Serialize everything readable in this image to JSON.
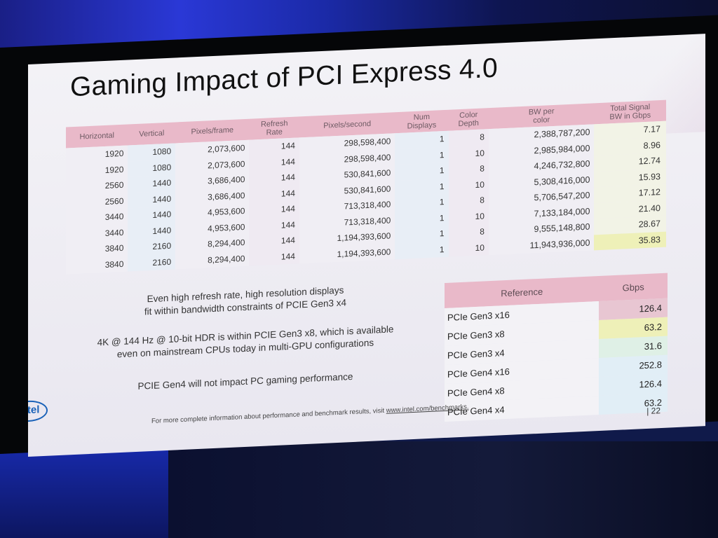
{
  "slide": {
    "title": "Gaming Impact of PCI Express 4.0",
    "page_number": "| 22",
    "logo_text": "intel",
    "footnote_prefix": "For more complete information about performance and benchmark results, visit ",
    "footnote_link": "www.intel.com/benchmarks.",
    "notes": [
      [
        "Even high refresh rate, high resolution displays",
        "fit within bandwidth constraints of PCIE Gen3 x4"
      ],
      [
        "4K @ 144 Hz @ 10-bit HDR is within PCIE Gen3 x8, which is available",
        "even on mainstream CPUs today in multi-GPU configurations"
      ],
      [
        "PCIE Gen4 will not impact PC gaming performance"
      ]
    ]
  },
  "main_table": {
    "headers": [
      [
        "Horizontal"
      ],
      [
        "Vertical"
      ],
      [
        "Pixels/frame"
      ],
      [
        "Refresh",
        "Rate"
      ],
      [
        "Pixels/second"
      ],
      [
        "Num",
        "Displays"
      ],
      [
        "Color",
        "Depth"
      ],
      [
        "BW per",
        "color"
      ],
      [
        "Total Signal",
        "BW in Gbps"
      ]
    ],
    "rows": [
      [
        "1920",
        "1080",
        "2,073,600",
        "144",
        "298,598,400",
        "1",
        "8",
        "2,388,787,200",
        "7.17"
      ],
      [
        "1920",
        "1080",
        "2,073,600",
        "144",
        "298,598,400",
        "1",
        "10",
        "2,985,984,000",
        "8.96"
      ],
      [
        "2560",
        "1440",
        "3,686,400",
        "144",
        "530,841,600",
        "1",
        "8",
        "4,246,732,800",
        "12.74"
      ],
      [
        "2560",
        "1440",
        "3,686,400",
        "144",
        "530,841,600",
        "1",
        "10",
        "5,308,416,000",
        "15.93"
      ],
      [
        "3440",
        "1440",
        "4,953,600",
        "144",
        "713,318,400",
        "1",
        "8",
        "5,706,547,200",
        "17.12"
      ],
      [
        "3440",
        "1440",
        "4,953,600",
        "144",
        "713,318,400",
        "1",
        "10",
        "7,133,184,000",
        "21.40"
      ],
      [
        "3840",
        "2160",
        "8,294,400",
        "144",
        "1,194,393,600",
        "1",
        "8",
        "9,555,148,800",
        "28.67"
      ],
      [
        "3840",
        "2160",
        "8,294,400",
        "144",
        "1,194,393,600",
        "1",
        "10",
        "11,943,936,000",
        "35.83"
      ]
    ],
    "highlight_color": "#eef0b8"
  },
  "reference_table": {
    "headers": [
      "Reference",
      "Gbps"
    ],
    "rows": [
      {
        "name": "PCIe Gen3 x16",
        "value": "126.4",
        "color": "#e8c6d2"
      },
      {
        "name": "PCIe Gen3 x8",
        "value": "63.2",
        "color": "#eef0b8"
      },
      {
        "name": "PCIe Gen3 x4",
        "value": "31.6",
        "color": "#dff0e6"
      },
      {
        "name": "PCIe Gen4 x16",
        "value": "252.8",
        "color": "#e1eef6"
      },
      {
        "name": "PCIe Gen4 x8",
        "value": "126.4",
        "color": "#e1eef6"
      },
      {
        "name": "PCIe Gen4 x4",
        "value": "63.2",
        "color": "#e1eef6"
      }
    ]
  }
}
